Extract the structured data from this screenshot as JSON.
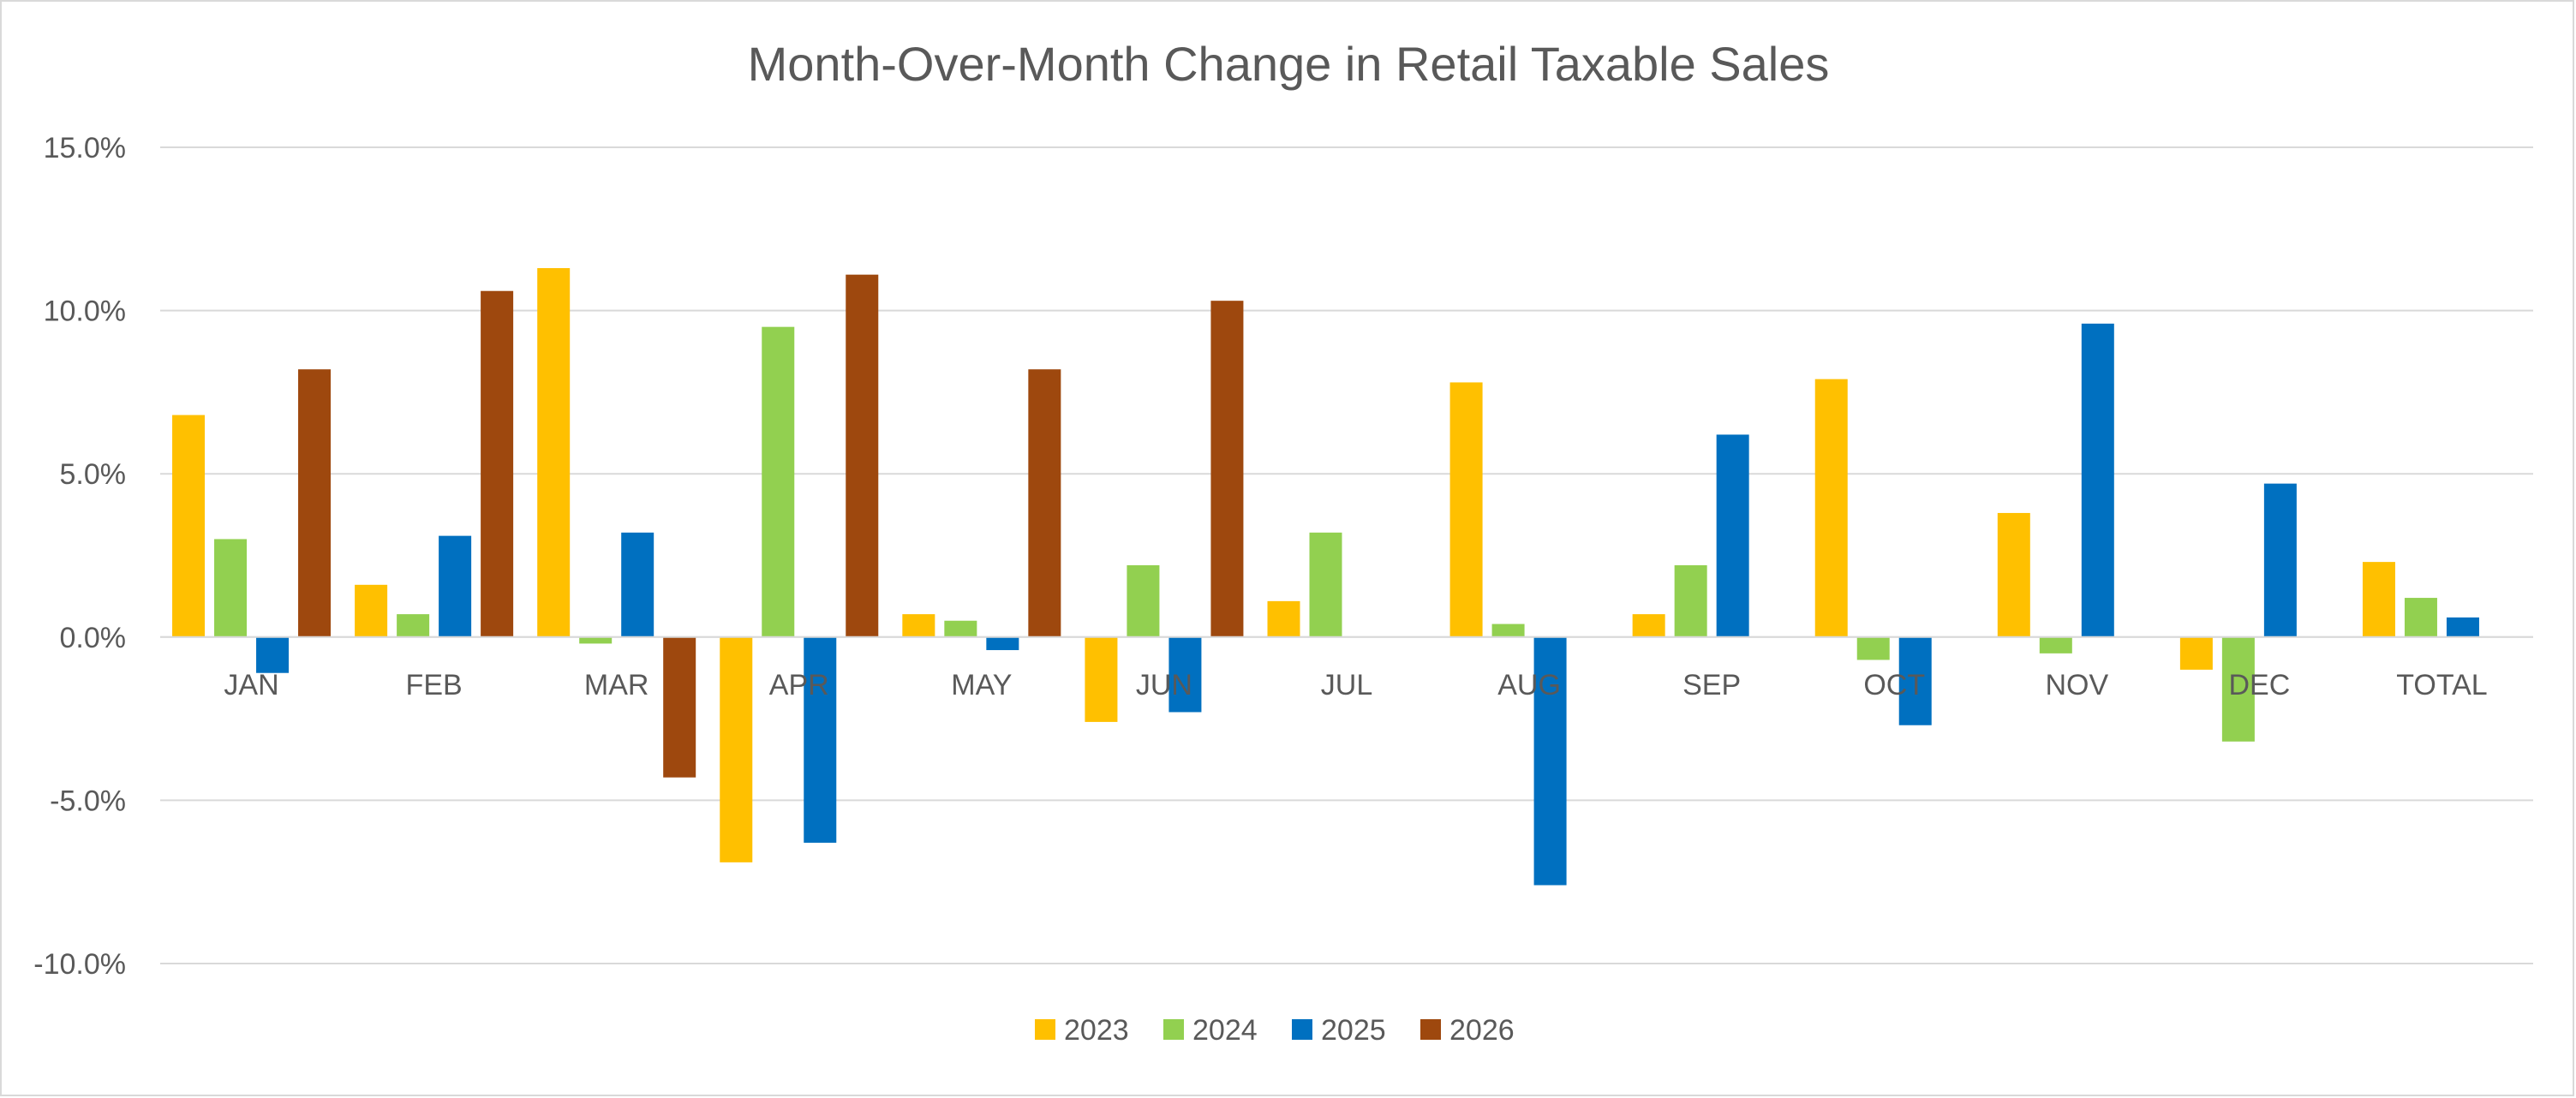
{
  "chart_data": {
    "type": "bar",
    "title": "Month-Over-Month Change in Retail Taxable Sales",
    "xlabel": "",
    "ylabel": "",
    "categories": [
      "JAN",
      "FEB",
      "MAR",
      "APR",
      "MAY",
      "JUN",
      "JUL",
      "AUG",
      "SEP",
      "OCT",
      "NOV",
      "DEC",
      "TOTAL"
    ],
    "y_ticks": [
      "15.0%",
      "10.0%",
      "5.0%",
      "0.0%",
      "-5.0%",
      "-10.0%"
    ],
    "ylim": [
      -10.0,
      15.0
    ],
    "y_unit": "%",
    "grid": true,
    "legend_position": "bottom",
    "series": [
      {
        "name": "2023",
        "color": "#FFC000",
        "values": [
          6.8,
          1.6,
          11.3,
          -6.9,
          0.7,
          -2.6,
          1.1,
          7.8,
          0.7,
          7.9,
          3.8,
          -1.0,
          2.3
        ]
      },
      {
        "name": "2024",
        "color": "#92D050",
        "values": [
          3.0,
          0.7,
          -0.2,
          9.5,
          0.5,
          2.2,
          3.2,
          0.4,
          2.2,
          -0.7,
          -0.5,
          -3.2,
          1.2
        ]
      },
      {
        "name": "2025",
        "color": "#0070C0",
        "values": [
          -1.1,
          3.1,
          3.2,
          -6.3,
          -0.4,
          -2.3,
          null,
          -7.6,
          6.2,
          -2.7,
          9.6,
          4.7,
          0.6
        ]
      },
      {
        "name": "2026",
        "color": "#9E480E",
        "values": [
          8.2,
          10.6,
          -4.3,
          11.1,
          8.2,
          10.3,
          null,
          null,
          null,
          null,
          null,
          null,
          null
        ]
      }
    ]
  }
}
